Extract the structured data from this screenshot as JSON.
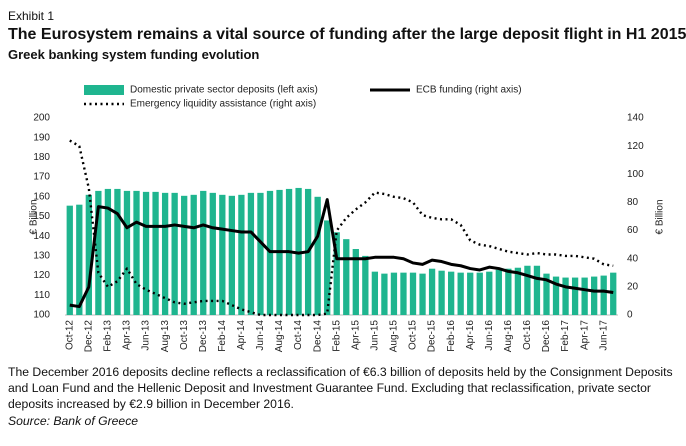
{
  "header": {
    "exhibit": "Exhibit 1",
    "title": "The Eurosystem remains a vital source of funding after the large deposit flight in H1 2015",
    "subtitle": "Greek banking system funding evolution"
  },
  "chart_data": {
    "type": "bar-line",
    "categories": [
      "Oct-12",
      null,
      "Dec-12",
      null,
      "Feb-13",
      null,
      "Apr-13",
      null,
      "Jun-13",
      null,
      "Aug-13",
      null,
      "Oct-13",
      null,
      "Dec-13",
      null,
      "Feb-14",
      null,
      "Apr-14",
      null,
      "Jun-14",
      null,
      "Aug-14",
      null,
      "Oct-14",
      null,
      "Dec-14",
      null,
      "Feb-15",
      null,
      "Apr-15",
      null,
      "Jun-15",
      null,
      "Aug-15",
      null,
      "Oct-15",
      null,
      "Dec-15",
      null,
      "Feb-16",
      null,
      "Apr-16",
      null,
      "Jun-16",
      null,
      "Aug-16",
      null,
      "Oct-16",
      null,
      "Dec-16",
      null,
      "Feb-17",
      null,
      "Apr-17",
      null,
      "Jun-17",
      null
    ],
    "series": [
      {
        "name": "Domestic private sector deposits (left axis)",
        "type": "bar",
        "axis": "y",
        "color": "#1fb58f",
        "values": [
          155.5,
          156,
          161,
          163,
          164,
          164,
          163,
          163,
          162.5,
          162.5,
          162,
          162,
          160.5,
          161,
          163,
          162,
          161,
          160.5,
          161,
          162,
          162,
          163,
          163.5,
          164,
          164.5,
          164,
          160,
          148,
          142,
          138.5,
          133.5,
          130,
          122,
          121,
          121.5,
          121.5,
          121.5,
          121,
          123.5,
          122.5,
          122,
          121.5,
          121.5,
          121.5,
          122,
          123,
          123.5,
          124,
          125,
          125,
          121,
          119.5,
          119,
          119,
          119,
          119.5,
          120,
          121.5
        ]
      },
      {
        "name": "ECB funding (right axis)",
        "type": "line",
        "axis": "y2",
        "color": "#000000",
        "style": "solid",
        "values": [
          7,
          6,
          20,
          77,
          76,
          72,
          62,
          66,
          63,
          63,
          63,
          64,
          63,
          62,
          64,
          62,
          61,
          60,
          59,
          59,
          52,
          45,
          45,
          45,
          44,
          45,
          56,
          82,
          40,
          40,
          40,
          40,
          41,
          41,
          41,
          40,
          37,
          36,
          39,
          38,
          36,
          35,
          33,
          32,
          34,
          33,
          31,
          30,
          28,
          26,
          25,
          22,
          20,
          19,
          18,
          17,
          17,
          16
        ]
      },
      {
        "name": "Emergency liquidity assistance (right axis)",
        "type": "line",
        "axis": "y2",
        "color": "#000000",
        "style": "dotted",
        "values": [
          124,
          120,
          90,
          30,
          20,
          24,
          33,
          22,
          18,
          15,
          12,
          9,
          8,
          9,
          10,
          10,
          10,
          7,
          4,
          2,
          0,
          0,
          0,
          0,
          0,
          0,
          0,
          1,
          60,
          69,
          75,
          80,
          87,
          86,
          84,
          83,
          80,
          71,
          69,
          68,
          68,
          64,
          53,
          50,
          49,
          47,
          45,
          44,
          43,
          44,
          43,
          43,
          42,
          42,
          41,
          40,
          36,
          35
        ]
      }
    ],
    "ylabel": "€ Billion",
    "y2label": "€ Billion",
    "ylim": [
      100,
      200
    ],
    "yticks": [
      100,
      110,
      120,
      130,
      140,
      150,
      160,
      170,
      180,
      190,
      200
    ],
    "y2lim": [
      0,
      140
    ],
    "y2ticks": [
      0,
      20,
      40,
      60,
      80,
      100,
      120,
      140
    ]
  },
  "footer": {
    "note": "The December 2016 deposits decline reflects a reclassification of €6.3 billion of deposits held by the Consignment Deposits and Loan Fund and the Hellenic Deposit and Investment Guarantee Fund. Excluding that reclassification, private sector deposits increased by €2.9 billion in December 2016.",
    "source": "Source: Bank of Greece"
  }
}
